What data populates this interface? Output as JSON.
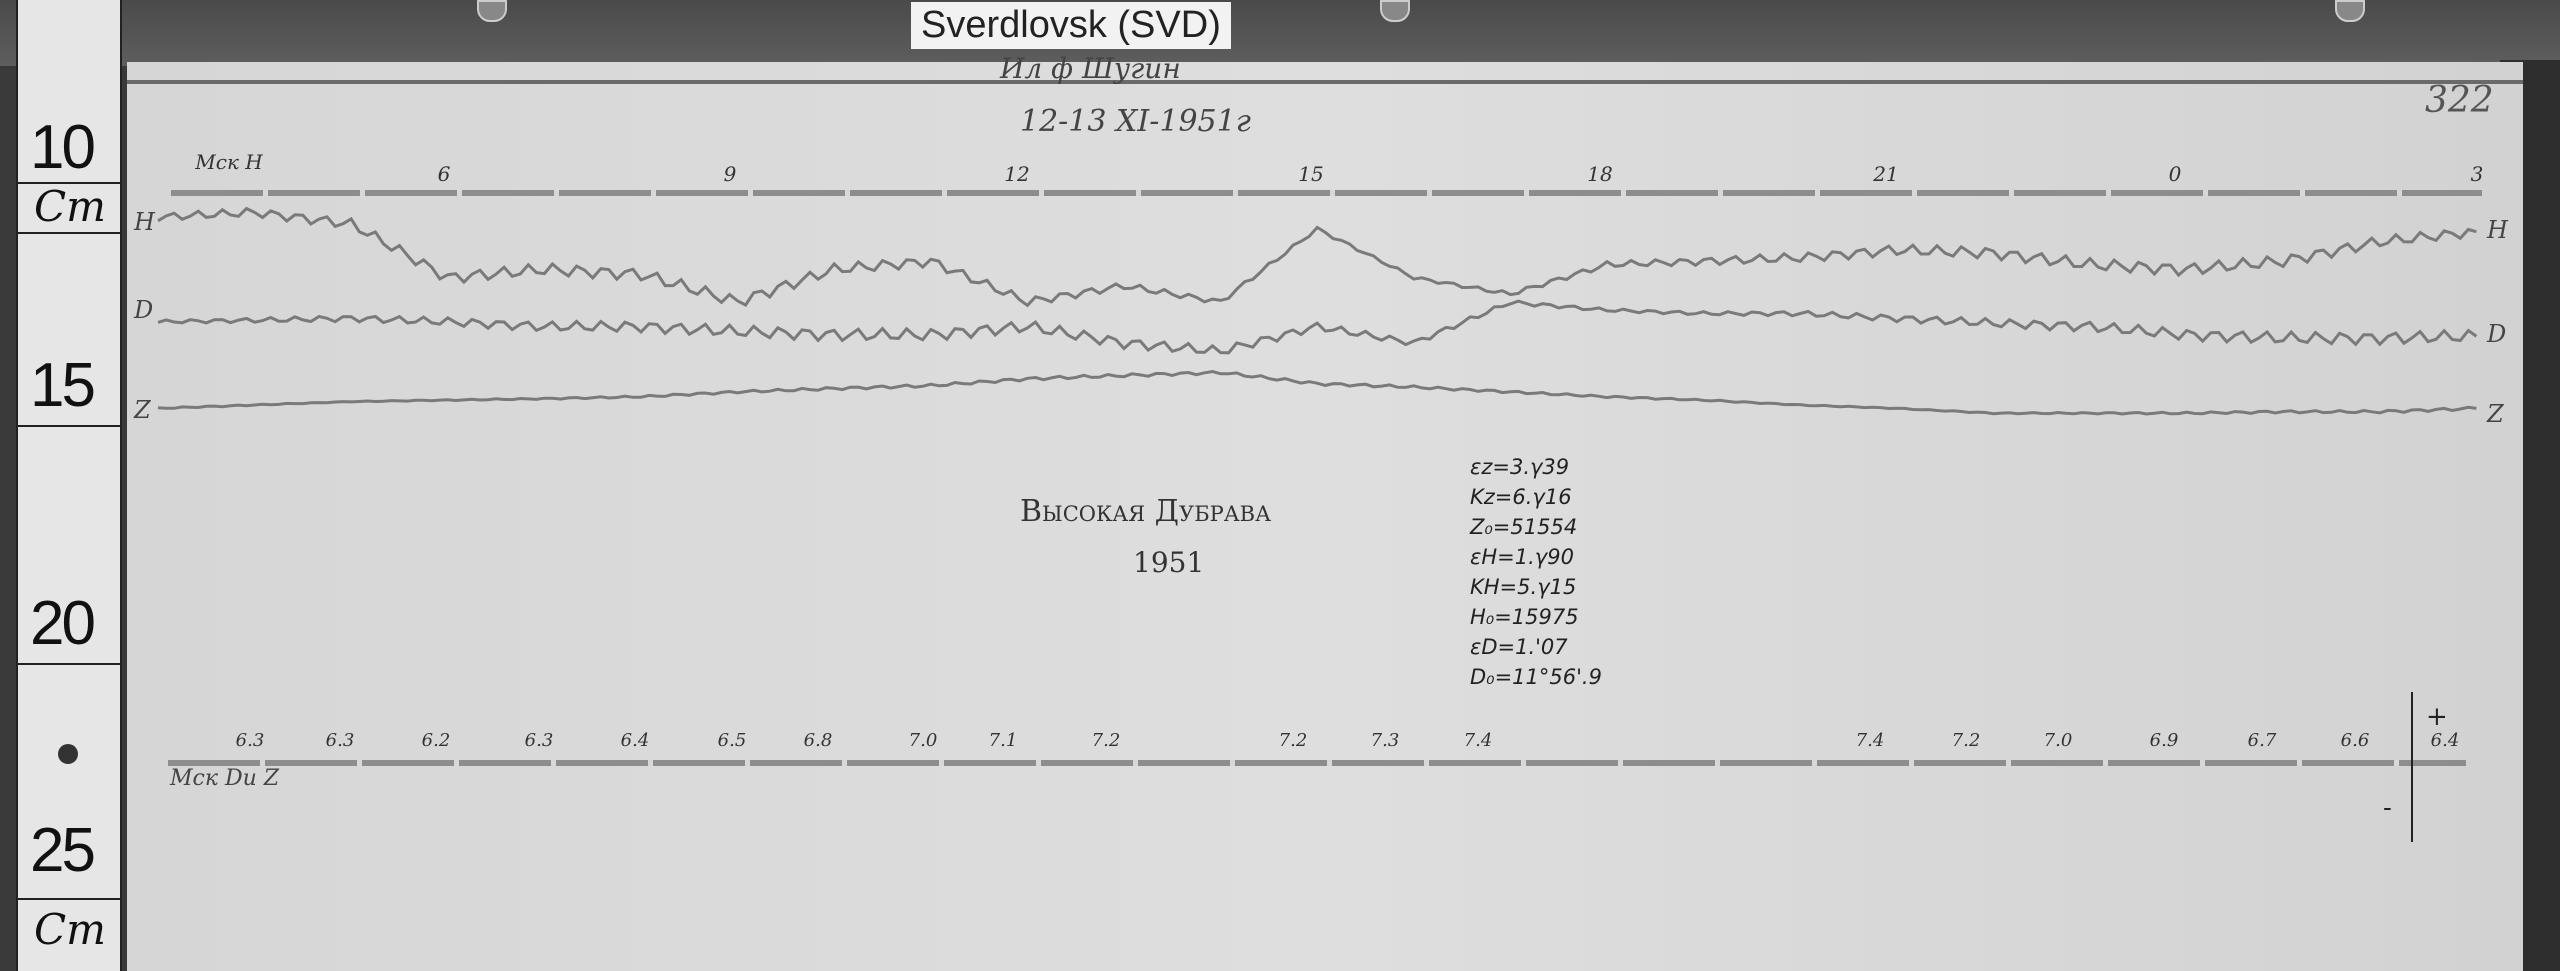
{
  "station_label": "Sverdlovsk (SVD)",
  "sheet_number": "322",
  "header": {
    "scribble": "Ил ф Шугин",
    "date": "12-13 XI-1951г"
  },
  "ruler": {
    "labels": [
      "10",
      "15",
      "20",
      "25"
    ],
    "unit_top": "Cm",
    "unit_bottom": "Cm"
  },
  "trace_labels": {
    "left": [
      "H",
      "D",
      "Z"
    ],
    "right": [
      "H",
      "D",
      "Z"
    ]
  },
  "observatory": {
    "name": "Высокая Дубрава",
    "year": "1951"
  },
  "constants": [
    "εz=3.γ39",
    "Kz=6.γ16",
    "Z₀=51554",
    "εH=1.γ90",
    "KH=5.γ15",
    "H₀=15975",
    "εD=1.'07",
    "D₀=11°56'.9"
  ],
  "bottom_axis": {
    "label": "Мск Dи Z",
    "values": [
      "6.3",
      "6.3",
      "6.2",
      "6.3",
      "6.4",
      "6.5",
      "6.8",
      "7.0",
      "7.1",
      "7.2",
      "7.2",
      "7.3",
      "7.4",
      "7.4",
      "7.2",
      "7.0",
      "6.9",
      "6.7",
      "6.6",
      "6.4"
    ],
    "arrow_plus": "+",
    "arrow_minus": "-"
  },
  "chart_data": {
    "type": "line",
    "title": "",
    "xlabel": "Мск H",
    "ylabel": "",
    "x_tick_labels": [
      "6",
      "9",
      "12",
      "15",
      "18",
      "21",
      "0",
      "3"
    ],
    "x_hours": [
      3,
      4,
      5,
      6,
      7,
      8,
      9,
      10,
      11,
      12,
      13,
      14,
      15,
      16,
      17,
      18,
      19,
      20,
      21,
      22,
      23,
      24,
      25,
      26,
      27
    ],
    "y_units": "cm",
    "ylim": [
      10,
      25
    ],
    "grid": false,
    "colors": {
      "trace": "#7a7a7a"
    },
    "series": [
      {
        "name": "H",
        "values": [
          11.45,
          11.35,
          11.59,
          12.7,
          12.53,
          12.63,
          13.2,
          12.53,
          12.36,
          13.2,
          12.87,
          13.2,
          11.69,
          12.7,
          13.04,
          12.43,
          12.36,
          12.29,
          12.13,
          12.19,
          12.43,
          12.53,
          12.36,
          11.96,
          11.75
        ]
      },
      {
        "name": "D",
        "values": [
          13.61,
          13.58,
          13.54,
          13.61,
          13.71,
          13.71,
          13.81,
          13.88,
          13.88,
          13.71,
          14.05,
          14.22,
          13.71,
          14.05,
          13.21,
          13.37,
          13.44,
          13.44,
          13.54,
          13.64,
          13.71,
          13.88,
          13.95,
          13.95,
          13.91
        ]
      },
      {
        "name": "Z",
        "values": [
          15.4,
          15.33,
          15.26,
          15.23,
          15.2,
          15.16,
          15.06,
          14.99,
          14.93,
          14.79,
          14.72,
          14.66,
          14.89,
          14.96,
          15.06,
          15.16,
          15.23,
          15.33,
          15.4,
          15.5,
          15.5,
          15.5,
          15.47,
          15.47,
          15.4
        ]
      }
    ]
  }
}
